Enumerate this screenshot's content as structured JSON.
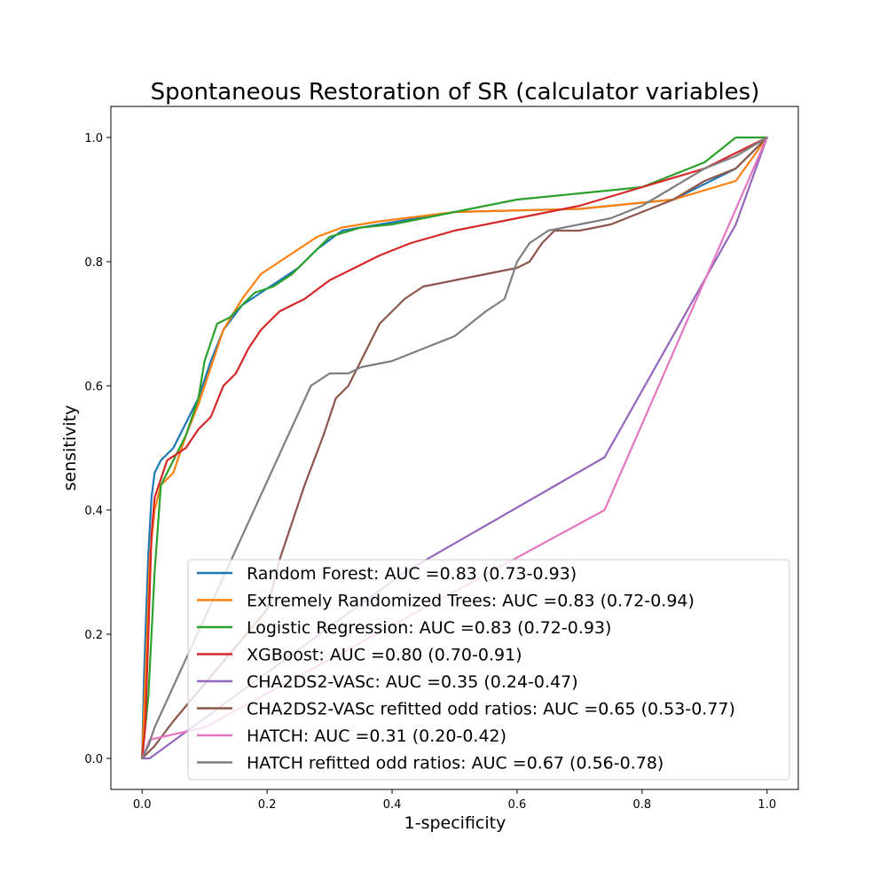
{
  "chart_data": {
    "type": "line",
    "title": "Spontaneous Restoration of SR (calculator variables)",
    "xlabel": "1-specificity",
    "ylabel": "sensitivity",
    "xlim": [
      -0.05,
      1.05
    ],
    "ylim": [
      -0.05,
      1.05
    ],
    "xticks": [
      {
        "value": 0.0,
        "label": "0.0"
      },
      {
        "value": 0.2,
        "label": "0.2"
      },
      {
        "value": 0.4,
        "label": "0.4"
      },
      {
        "value": 0.6,
        "label": "0.6"
      },
      {
        "value": 0.8,
        "label": "0.8"
      },
      {
        "value": 1.0,
        "label": "1.0"
      }
    ],
    "yticks": [
      {
        "value": 0.0,
        "label": "0.0"
      },
      {
        "value": 0.2,
        "label": "0.2"
      },
      {
        "value": 0.4,
        "label": "0.4"
      },
      {
        "value": 0.6,
        "label": "0.6"
      },
      {
        "value": 0.8,
        "label": "0.8"
      },
      {
        "value": 1.0,
        "label": "1.0"
      }
    ],
    "grid": false,
    "legend_position": "lower-right",
    "series": [
      {
        "name": "Random Forest: AUC =0.83 (0.73-0.93)",
        "color": "#1f77b4",
        "x": [
          0,
          0.003,
          0.006,
          0.01,
          0.015,
          0.02,
          0.03,
          0.05,
          0.07,
          0.09,
          0.11,
          0.13,
          0.16,
          0.19,
          0.22,
          0.25,
          0.28,
          0.32,
          0.38,
          0.5,
          0.7,
          0.85,
          0.95,
          1.0
        ],
        "y": [
          0,
          0.13,
          0.22,
          0.33,
          0.42,
          0.46,
          0.48,
          0.5,
          0.54,
          0.58,
          0.64,
          0.69,
          0.73,
          0.75,
          0.77,
          0.79,
          0.82,
          0.85,
          0.86,
          0.88,
          0.885,
          0.9,
          0.95,
          1.0
        ]
      },
      {
        "name": "Extremely Randomized Trees: AUC =0.83 (0.72-0.94)",
        "color": "#ff7f0e",
        "x": [
          0,
          0.004,
          0.008,
          0.012,
          0.02,
          0.03,
          0.05,
          0.07,
          0.09,
          0.11,
          0.13,
          0.16,
          0.19,
          0.22,
          0.25,
          0.28,
          0.32,
          0.38,
          0.5,
          0.7,
          0.85,
          0.95,
          1.0
        ],
        "y": [
          0,
          0.1,
          0.2,
          0.32,
          0.4,
          0.44,
          0.46,
          0.52,
          0.57,
          0.63,
          0.69,
          0.74,
          0.78,
          0.8,
          0.82,
          0.84,
          0.855,
          0.865,
          0.88,
          0.885,
          0.9,
          0.93,
          1.0
        ]
      },
      {
        "name": "Logistic Regression: AUC =0.83 (0.72-0.93)",
        "color": "#2ca02c",
        "x": [
          0,
          0.005,
          0.01,
          0.02,
          0.03,
          0.05,
          0.07,
          0.09,
          0.1,
          0.12,
          0.14,
          0.16,
          0.18,
          0.21,
          0.24,
          0.27,
          0.3,
          0.35,
          0.4,
          0.5,
          0.6,
          0.7,
          0.8,
          0.9,
          0.95,
          1.0
        ],
        "y": [
          0,
          0.05,
          0.1,
          0.3,
          0.44,
          0.48,
          0.52,
          0.58,
          0.64,
          0.7,
          0.71,
          0.73,
          0.75,
          0.76,
          0.78,
          0.81,
          0.84,
          0.855,
          0.86,
          0.88,
          0.9,
          0.91,
          0.92,
          0.96,
          1.0,
          1.0
        ]
      },
      {
        "name": "XGBoost: AUC =0.80 (0.70-0.91)",
        "color": "#d62728",
        "x": [
          0,
          0.005,
          0.01,
          0.015,
          0.02,
          0.04,
          0.07,
          0.09,
          0.11,
          0.13,
          0.15,
          0.17,
          0.19,
          0.22,
          0.26,
          0.3,
          0.34,
          0.38,
          0.43,
          0.5,
          0.6,
          0.7,
          0.8,
          0.9,
          1.0
        ],
        "y": [
          0,
          0.05,
          0.2,
          0.36,
          0.42,
          0.48,
          0.5,
          0.53,
          0.55,
          0.6,
          0.62,
          0.66,
          0.69,
          0.72,
          0.74,
          0.77,
          0.79,
          0.81,
          0.83,
          0.85,
          0.87,
          0.89,
          0.92,
          0.95,
          1.0
        ]
      },
      {
        "name": "CHA2DS2-VASc: AUC =0.35 (0.24-0.47)",
        "color": "#9467bd",
        "x": [
          0,
          0.012,
          0.42,
          0.74,
          0.95,
          1.0
        ],
        "y": [
          0,
          0.0,
          0.3,
          0.485,
          0.86,
          1.0
        ]
      },
      {
        "name": "CHA2DS2-VASc refitted odd ratios: AUC =0.65 (0.53-0.77)",
        "color": "#8c564b",
        "x": [
          0,
          0.02,
          0.05,
          0.1,
          0.15,
          0.2,
          0.22,
          0.26,
          0.29,
          0.31,
          0.33,
          0.34,
          0.36,
          0.38,
          0.4,
          0.42,
          0.45,
          0.5,
          0.55,
          0.6,
          0.62,
          0.64,
          0.66,
          0.7,
          0.75,
          0.8,
          0.85,
          0.9,
          0.95,
          1.0
        ],
        "y": [
          0,
          0.02,
          0.06,
          0.12,
          0.18,
          0.24,
          0.32,
          0.44,
          0.52,
          0.58,
          0.6,
          0.62,
          0.66,
          0.7,
          0.72,
          0.74,
          0.76,
          0.77,
          0.78,
          0.79,
          0.8,
          0.83,
          0.85,
          0.85,
          0.86,
          0.88,
          0.9,
          0.93,
          0.95,
          1.0
        ]
      },
      {
        "name": "HATCH: AUC =0.31 (0.20-0.42)",
        "color": "#e377c2",
        "x": [
          0,
          0.012,
          0.1,
          0.74,
          1.0
        ],
        "y": [
          0,
          0.03,
          0.05,
          0.4,
          1.0
        ]
      },
      {
        "name": "HATCH refitted odd ratios: AUC =0.67 (0.56-0.78)",
        "color": "#7f7f7f",
        "x": [
          0,
          0.01,
          0.02,
          0.27,
          0.3,
          0.33,
          0.35,
          0.4,
          0.45,
          0.5,
          0.55,
          0.58,
          0.6,
          0.62,
          0.65,
          0.7,
          0.75,
          0.8,
          0.85,
          0.9,
          0.95,
          1.0
        ],
        "y": [
          0,
          0.02,
          0.05,
          0.6,
          0.62,
          0.62,
          0.63,
          0.64,
          0.66,
          0.68,
          0.72,
          0.74,
          0.8,
          0.83,
          0.85,
          0.86,
          0.87,
          0.89,
          0.92,
          0.95,
          0.97,
          1.0
        ]
      }
    ]
  }
}
